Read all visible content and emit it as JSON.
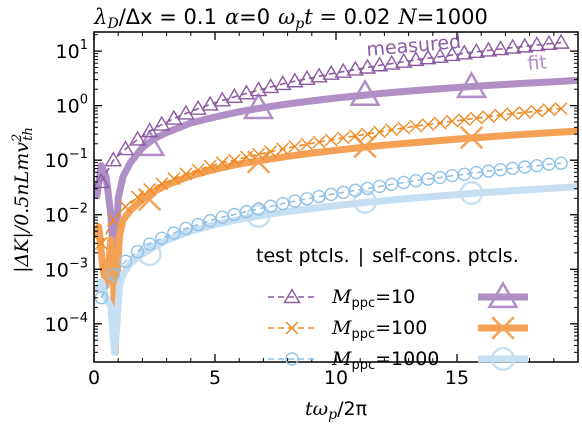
{
  "chart_data": {
    "type": "line",
    "title": {
      "param1_symbol": "λ",
      "param1_sub": "D",
      "param1_rest": "/Δx = ",
      "param1_value": "0.1",
      "param2_symbol": "α",
      "param2_value": "0",
      "param3_symbol": "ω",
      "param3_sub": "p",
      "param3_rest": "t = ",
      "param3_value": "0.02",
      "param4_symbol": "N",
      "param4_value": "1000"
    },
    "xlabel": {
      "pre": "tω",
      "sub": "p",
      "post": "/2π"
    },
    "ylabel": {
      "pre": "|ΔK|/0.5nLmv",
      "sup": "2",
      "sub": "th"
    },
    "xlim": [
      0,
      20
    ],
    "ylim_log10": [
      -4.7,
      1.35
    ],
    "yscale": "log",
    "x_ticks": [
      0,
      5,
      10,
      15
    ],
    "x_tick_labels": [
      "0",
      "5",
      "10",
      "15"
    ],
    "y_ticks_log10": [
      -4,
      -3,
      -2,
      -1,
      0,
      1
    ],
    "y_tick_labels": [
      {
        "base": "10",
        "exp": "−4"
      },
      {
        "base": "10",
        "exp": "−3"
      },
      {
        "base": "10",
        "exp": "−2"
      },
      {
        "base": "10",
        "exp": "−1"
      },
      {
        "base": "10",
        "exp": "0"
      },
      {
        "base": "10",
        "exp": "1"
      }
    ],
    "annotations": {
      "measured": "measured",
      "fit": "fit"
    },
    "legend": {
      "placement": "lower-right",
      "header_left": "test ptcls.",
      "separator": "|",
      "header_right": "self-cons. ptcls.",
      "entries": [
        {
          "sym": "M",
          "sub": "ppc",
          "value": "=10"
        },
        {
          "sym": "M",
          "sub": "ppc",
          "value": "=100"
        },
        {
          "sym": "M",
          "sub": "ppc",
          "value": "=1000"
        }
      ]
    },
    "series": [
      {
        "group": "test",
        "marker": "triangle",
        "color": "#8b5aa0",
        "x": [
          0.3,
          0.8,
          1.3,
          1.8,
          2.3,
          2.8,
          3.3,
          3.8,
          4.3,
          4.8,
          5.3,
          5.8,
          6.3,
          6.8,
          7.3,
          7.8,
          8.3,
          8.8,
          9.3,
          9.8,
          10.3,
          10.8,
          11.3,
          11.8,
          12.3,
          12.8,
          13.3,
          13.8,
          14.3,
          14.8,
          15.3,
          15.8,
          16.3,
          16.8,
          17.3,
          17.8,
          18.3,
          18.8,
          19.3
        ],
        "y": [
          0.04,
          0.1,
          0.16,
          0.24,
          0.34,
          0.45,
          0.58,
          0.72,
          0.88,
          1.05,
          1.25,
          1.45,
          1.68,
          1.93,
          2.2,
          2.5,
          2.8,
          3.1,
          3.45,
          3.85,
          4.2,
          4.6,
          5.0,
          5.5,
          5.9,
          6.4,
          6.9,
          7.4,
          7.9,
          8.5,
          9.1,
          9.7,
          10.3,
          10.9,
          11.6,
          12.2,
          12.9,
          13.6,
          14.3
        ]
      },
      {
        "group": "test",
        "marker": "x",
        "color": "#ee8a22",
        "x": [
          0.3,
          0.8,
          1.3,
          1.8,
          2.3,
          2.8,
          3.3,
          3.8,
          4.3,
          4.8,
          5.3,
          5.8,
          6.3,
          6.8,
          7.3,
          7.8,
          8.3,
          8.8,
          9.3,
          9.8,
          10.3,
          10.8,
          11.3,
          11.8,
          12.3,
          12.8,
          13.3,
          13.8,
          14.3,
          14.8,
          15.3,
          15.8,
          16.3,
          16.8,
          17.3,
          17.8,
          18.3,
          18.8,
          19.3
        ],
        "y": [
          0.003,
          0.008,
          0.014,
          0.021,
          0.029,
          0.037,
          0.046,
          0.056,
          0.066,
          0.078,
          0.09,
          0.1,
          0.114,
          0.128,
          0.143,
          0.16,
          0.178,
          0.196,
          0.215,
          0.235,
          0.257,
          0.28,
          0.3,
          0.33,
          0.36,
          0.39,
          0.42,
          0.45,
          0.48,
          0.52,
          0.55,
          0.59,
          0.63,
          0.67,
          0.71,
          0.75,
          0.79,
          0.84,
          0.88
        ]
      },
      {
        "group": "test",
        "marker": "circle",
        "color": "#92c2e6",
        "x": [
          0.3,
          0.8,
          1.3,
          1.8,
          2.3,
          2.8,
          3.3,
          3.8,
          4.3,
          4.8,
          5.3,
          5.8,
          6.3,
          6.8,
          7.3,
          7.8,
          8.3,
          8.8,
          9.3,
          9.8,
          10.3,
          10.8,
          11.3,
          11.8,
          12.3,
          12.8,
          13.3,
          13.8,
          14.3,
          14.8,
          15.3,
          15.8,
          16.3,
          16.8,
          17.3,
          17.8,
          18.3,
          18.8,
          19.3
        ],
        "y": [
          0.0003,
          0.0008,
          0.0014,
          0.0021,
          0.0029,
          0.0037,
          0.0046,
          0.0056,
          0.0066,
          0.0078,
          0.009,
          0.0101,
          0.0114,
          0.0128,
          0.0143,
          0.016,
          0.0178,
          0.0196,
          0.0215,
          0.0236,
          0.0257,
          0.028,
          0.0304,
          0.033,
          0.036,
          0.039,
          0.042,
          0.045,
          0.048,
          0.052,
          0.055,
          0.059,
          0.063,
          0.067,
          0.071,
          0.075,
          0.079,
          0.084,
          0.088
        ]
      },
      {
        "group": "self-consistent",
        "marker": "triangle",
        "color": "#b08fc6",
        "x": [
          0.1,
          0.3,
          0.5,
          0.7,
          0.8,
          0.9,
          1.0,
          1.2,
          1.5,
          2.0,
          2.5,
          3,
          4,
          5,
          6,
          7,
          8,
          9,
          10,
          11,
          12,
          13,
          14,
          15,
          16,
          17,
          18,
          19,
          20
        ],
        "y": [
          0.02,
          0.08,
          0.05,
          0.01,
          0.0015,
          0.002,
          0.02,
          0.05,
          0.09,
          0.17,
          0.25,
          0.32,
          0.48,
          0.62,
          0.77,
          0.92,
          1.07,
          1.22,
          1.38,
          1.53,
          1.7,
          1.85,
          2.0,
          2.15,
          2.3,
          2.45,
          2.6,
          2.75,
          2.9
        ],
        "markers_x": [
          2.3,
          6.8,
          11.2,
          15.6
        ],
        "markers_y": [
          0.19,
          0.9,
          1.58,
          2.2
        ]
      },
      {
        "group": "self-consistent",
        "marker": "x",
        "color": "#f5a155",
        "x": [
          0.1,
          0.2,
          0.35,
          0.5,
          0.6,
          0.7,
          0.8,
          0.88,
          0.95,
          1.05,
          1.2,
          1.5,
          2.0,
          2.5,
          3,
          4,
          5,
          6,
          7,
          8,
          9,
          10,
          11,
          12,
          13,
          14,
          15,
          16,
          17,
          18,
          19,
          20
        ],
        "y": [
          0.004,
          0.006,
          0.0012,
          0.0005,
          0.0011,
          0.0035,
          0.0008,
          3e-05,
          0.0006,
          0.004,
          0.008,
          0.012,
          0.019,
          0.027,
          0.035,
          0.052,
          0.068,
          0.085,
          0.1,
          0.118,
          0.135,
          0.152,
          0.17,
          0.188,
          0.206,
          0.224,
          0.243,
          0.262,
          0.282,
          0.302,
          0.322,
          0.342
        ],
        "markers_x": [
          2.3,
          6.8,
          11.2,
          15.6
        ],
        "markers_y": [
          0.019,
          0.093,
          0.178,
          0.26
        ]
      },
      {
        "group": "self-consistent",
        "marker": "circle",
        "color": "#c6dff3",
        "x": [
          0.1,
          0.3,
          0.5,
          0.7,
          0.85,
          0.95,
          1.05,
          1.2,
          1.5,
          2.0,
          2.5,
          3,
          4,
          5,
          6,
          7,
          8,
          9,
          10,
          11,
          12,
          13,
          14,
          15,
          16,
          17,
          18,
          19,
          20
        ],
        "y": [
          0.0004,
          0.0006,
          0.0003,
          0.0002,
          3e-05,
          0.0001,
          0.0005,
          0.0008,
          0.0013,
          0.0019,
          0.0026,
          0.0034,
          0.005,
          0.0066,
          0.0082,
          0.0098,
          0.0114,
          0.013,
          0.0147,
          0.0164,
          0.0181,
          0.0198,
          0.0216,
          0.0234,
          0.0252,
          0.027,
          0.0289,
          0.0308,
          0.0327
        ],
        "markers_x": [
          2.3,
          6.8,
          11.2,
          15.6
        ],
        "markers_y": [
          0.0019,
          0.0095,
          0.0172,
          0.025
        ]
      }
    ]
  }
}
